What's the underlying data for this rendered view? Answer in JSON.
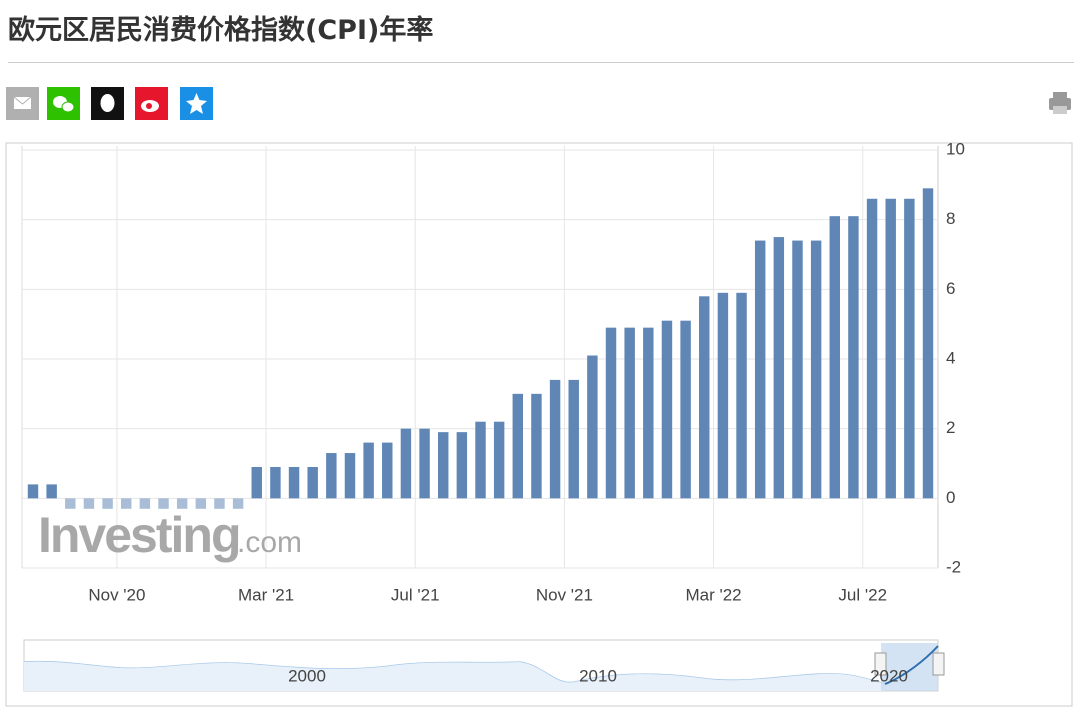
{
  "header": {
    "title": "欧元区居民消费价格指数(CPI)年率"
  },
  "watermark": {
    "main": "Investing",
    "suffix": ".com"
  },
  "navigator": {
    "labels": [
      "2000",
      "2010",
      "2020"
    ]
  },
  "chart_data": {
    "type": "bar",
    "categories": [
      null,
      null,
      null,
      null,
      null,
      "Nov '20",
      null,
      null,
      null,
      null,
      null,
      null,
      null,
      "Mar '21",
      null,
      null,
      null,
      null,
      null,
      null,
      null,
      "Jul '21",
      null,
      null,
      null,
      null,
      null,
      null,
      null,
      "Nov '21",
      null,
      null,
      null,
      null,
      null,
      null,
      null,
      "Mar '22",
      null,
      null,
      null,
      null,
      null,
      null,
      null,
      "Jul '22",
      null,
      null,
      null
    ],
    "values": [
      0.4,
      0.4,
      -0.3,
      -0.3,
      -0.3,
      -0.3,
      -0.3,
      -0.3,
      -0.3,
      -0.3,
      -0.3,
      -0.3,
      0.9,
      0.9,
      0.9,
      0.9,
      1.3,
      1.3,
      1.6,
      1.6,
      2.0,
      2.0,
      1.9,
      1.9,
      2.2,
      2.2,
      3.0,
      3.0,
      3.4,
      3.4,
      4.1,
      4.9,
      4.9,
      4.9,
      5.1,
      5.1,
      5.8,
      5.9,
      5.9,
      7.4,
      7.5,
      7.4,
      7.4,
      8.1,
      8.1,
      8.6,
      8.6,
      8.6,
      8.9
    ],
    "color": "#5f86b5",
    "negative_color": "#a9bdd6",
    "ylim": [
      -2,
      10
    ],
    "yticks": [
      -2,
      0,
      2,
      4,
      6,
      8,
      10
    ],
    "grid": true
  }
}
